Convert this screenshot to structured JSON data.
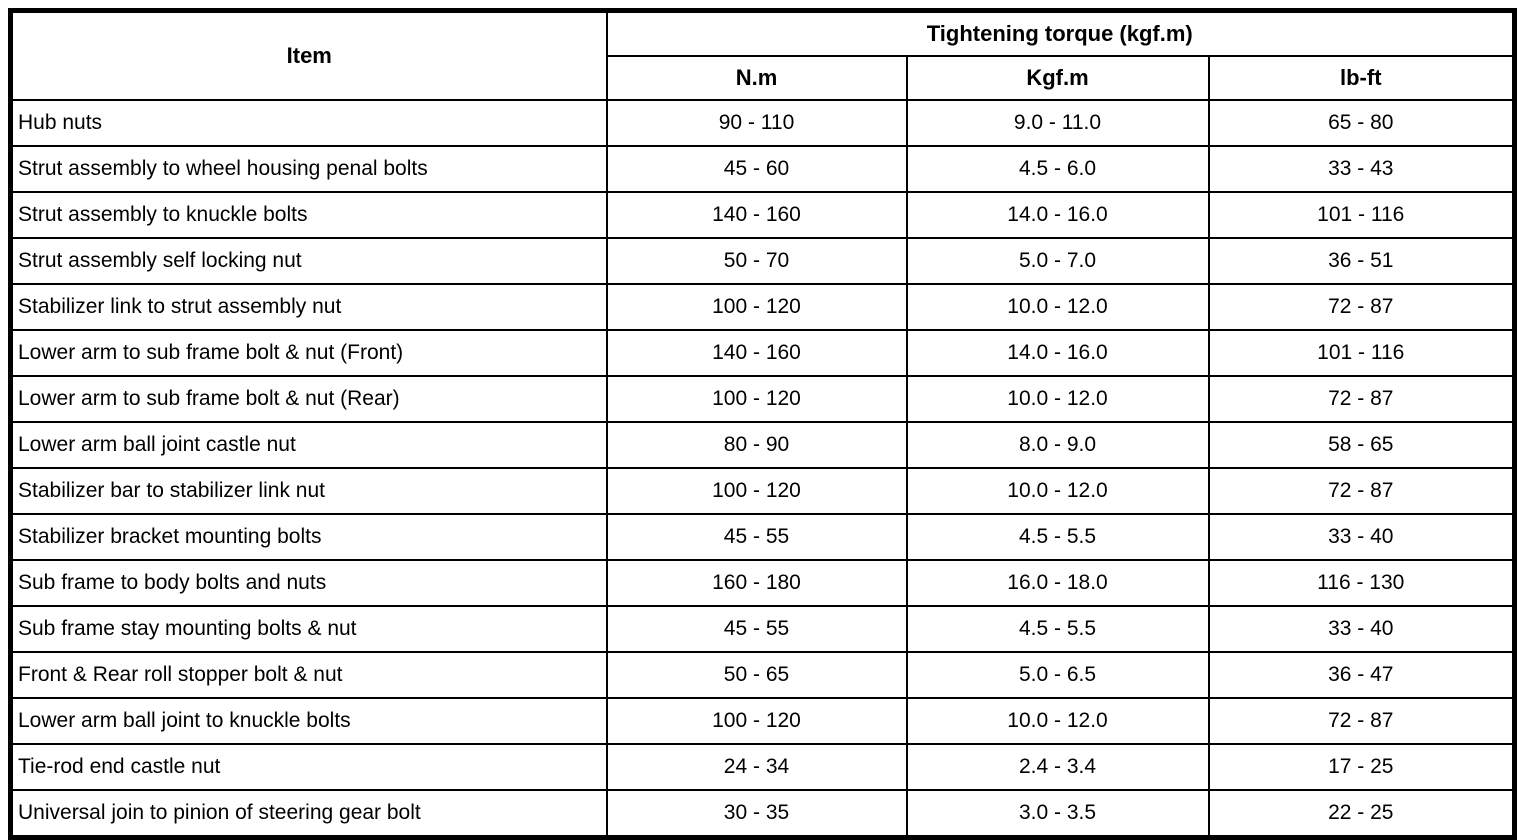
{
  "page": {
    "background_color": "#ffffff",
    "border_color": "#000000",
    "text_color": "#000000"
  },
  "table": {
    "header": {
      "item_label": "Item",
      "torque_group_label": "Tightening torque (kgf.m)",
      "unit_columns": [
        "N.m",
        "Kgf.m",
        "lb-ft"
      ]
    },
    "rows": [
      {
        "item": "Hub nuts",
        "nm": "90 - 110",
        "kgfm": "9.0 - 11.0",
        "lbft": "65 - 80"
      },
      {
        "item": "Strut assembly to wheel housing penal bolts",
        "nm": "45 - 60",
        "kgfm": "4.5 - 6.0",
        "lbft": "33 - 43"
      },
      {
        "item": "Strut assembly to knuckle bolts",
        "nm": "140 - 160",
        "kgfm": "14.0 - 16.0",
        "lbft": "101 - 116"
      },
      {
        "item": "Strut assembly self locking nut",
        "nm": "50 - 70",
        "kgfm": "5.0 - 7.0",
        "lbft": "36 - 51"
      },
      {
        "item": "Stabilizer link to strut assembly nut",
        "nm": "100 - 120",
        "kgfm": "10.0 - 12.0",
        "lbft": "72 - 87"
      },
      {
        "item": "Lower arm to sub frame bolt & nut (Front)",
        "nm": "140 - 160",
        "kgfm": "14.0 - 16.0",
        "lbft": "101 - 116"
      },
      {
        "item": "Lower arm to sub frame bolt & nut (Rear)",
        "nm": "100 - 120",
        "kgfm": "10.0 - 12.0",
        "lbft": "72 - 87"
      },
      {
        "item": "Lower arm ball joint castle nut",
        "nm": "80 - 90",
        "kgfm": "8.0 - 9.0",
        "lbft": "58 - 65"
      },
      {
        "item": "Stabilizer bar to stabilizer link nut",
        "nm": "100 - 120",
        "kgfm": "10.0 - 12.0",
        "lbft": "72 - 87"
      },
      {
        "item": "Stabilizer bracket mounting bolts",
        "nm": "45 - 55",
        "kgfm": "4.5 - 5.5",
        "lbft": "33 - 40"
      },
      {
        "item": "Sub frame to body bolts and nuts",
        "nm": "160 - 180",
        "kgfm": "16.0 - 18.0",
        "lbft": "116 - 130"
      },
      {
        "item": "Sub frame stay mounting bolts & nut",
        "nm": "45 - 55",
        "kgfm": "4.5 - 5.5",
        "lbft": "33 - 40"
      },
      {
        "item": "Front & Rear roll stopper bolt & nut",
        "nm": "50 - 65",
        "kgfm": "5.0 - 6.5",
        "lbft": "36 - 47"
      },
      {
        "item": "Lower arm ball joint to knuckle bolts",
        "nm": "100 - 120",
        "kgfm": "10.0 - 12.0",
        "lbft": "72 - 87"
      },
      {
        "item": "Tie-rod end castle nut",
        "nm": "24 - 34",
        "kgfm": "2.4 - 3.4",
        "lbft": "17 - 25"
      },
      {
        "item": "Universal join to pinion of steering gear bolt",
        "nm": "30 - 35",
        "kgfm": "3.0 - 3.5",
        "lbft": "22 - 25"
      }
    ]
  }
}
